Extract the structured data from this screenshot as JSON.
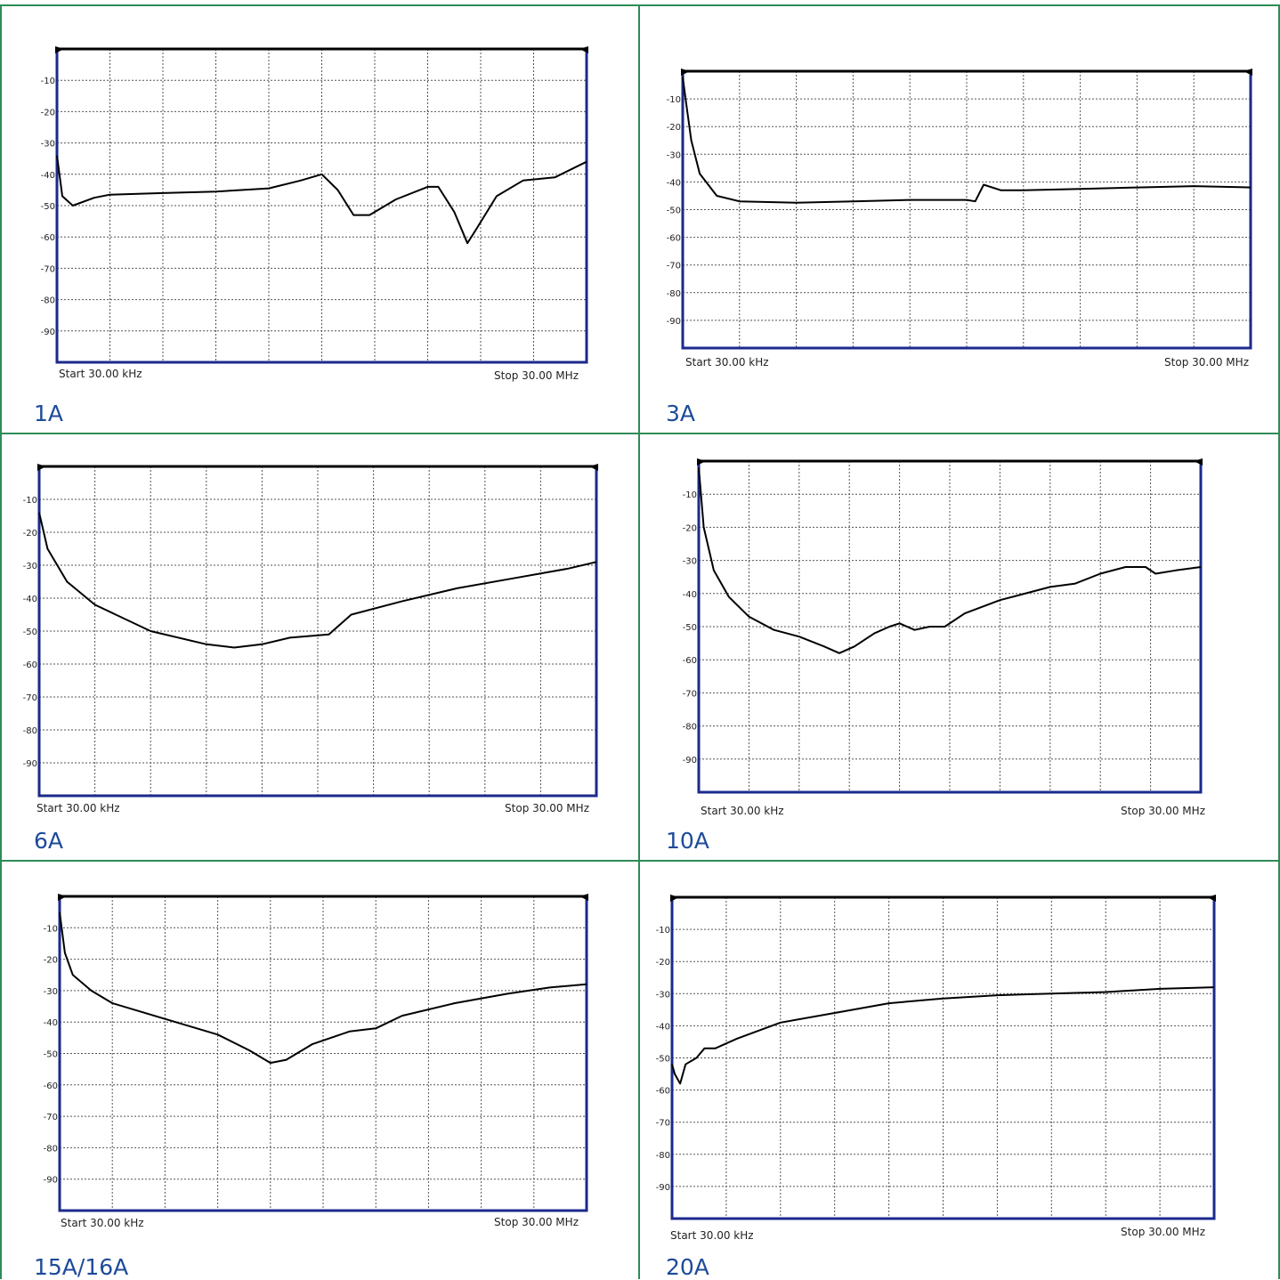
{
  "page": {
    "colors": {
      "cell_border": "#2e8b57",
      "caption": "#1e4b9a",
      "frame": "#1b2a8c",
      "grid": "#555555",
      "trace": "#000000"
    }
  },
  "chart_data": [
    {
      "type": "line",
      "caption": "1A",
      "start_label": "Start 30.00 kHz",
      "stop_label": "Stop 30.00 MHz",
      "yticks": [
        "-10",
        "-20",
        "-30",
        "-40",
        "-50",
        "-60",
        "-70",
        "-80",
        "-90"
      ],
      "ylim": [
        -100,
        0
      ],
      "x_divisions": 10,
      "series": [
        {
          "values": [
            [
              0,
              -34
            ],
            [
              0.1,
              -47
            ],
            [
              0.3,
              -50
            ],
            [
              0.7,
              -47.5
            ],
            [
              1,
              -46.5
            ],
            [
              2,
              -46
            ],
            [
              3,
              -45.5
            ],
            [
              4,
              -44.5
            ],
            [
              4.6,
              -42
            ],
            [
              5,
              -40
            ],
            [
              5.3,
              -45
            ],
            [
              5.6,
              -53
            ],
            [
              5.9,
              -53
            ],
            [
              6.4,
              -48
            ],
            [
              7,
              -44
            ],
            [
              7.2,
              -44
            ],
            [
              7.5,
              -52
            ],
            [
              7.75,
              -62
            ],
            [
              7.9,
              -58
            ],
            [
              8.3,
              -47
            ],
            [
              8.8,
              -42
            ],
            [
              9.4,
              -41
            ],
            [
              10,
              -36
            ]
          ]
        }
      ]
    },
    {
      "type": "line",
      "caption": "3A",
      "start_label": "Start 30.00 kHz",
      "stop_label": "Stop 30.00 MHz",
      "yticks": [
        "-10",
        "-20",
        "-30",
        "-40",
        "-50",
        "-60",
        "-70",
        "-80",
        "-90"
      ],
      "ylim": [
        -100,
        0
      ],
      "x_divisions": 10,
      "series": [
        {
          "values": [
            [
              0,
              -2
            ],
            [
              0.05,
              -10
            ],
            [
              0.15,
              -25
            ],
            [
              0.3,
              -37
            ],
            [
              0.6,
              -45
            ],
            [
              1,
              -47
            ],
            [
              2,
              -47.5
            ],
            [
              3,
              -47
            ],
            [
              4,
              -46.5
            ],
            [
              5,
              -46.5
            ],
            [
              5.15,
              -47
            ],
            [
              5.3,
              -41
            ],
            [
              5.6,
              -43
            ],
            [
              6,
              -43
            ],
            [
              7,
              -42.5
            ],
            [
              8,
              -42
            ],
            [
              9,
              -41.5
            ],
            [
              10,
              -42
            ]
          ]
        }
      ]
    },
    {
      "type": "line",
      "caption": "6A",
      "start_label": "Start 30.00 kHz",
      "stop_label": "Stop 30.00 MHz",
      "yticks": [
        "-10",
        "-20",
        "-30",
        "-40",
        "-50",
        "-60",
        "-70",
        "-80",
        "-90"
      ],
      "ylim": [
        -100,
        0
      ],
      "x_divisions": 10,
      "series": [
        {
          "values": [
            [
              0,
              -14
            ],
            [
              0.15,
              -25
            ],
            [
              0.5,
              -35
            ],
            [
              1,
              -42
            ],
            [
              2,
              -50
            ],
            [
              3,
              -54
            ],
            [
              3.5,
              -55
            ],
            [
              4,
              -54
            ],
            [
              4.5,
              -52
            ],
            [
              5.2,
              -51
            ],
            [
              5.6,
              -45
            ],
            [
              6.5,
              -41
            ],
            [
              7.5,
              -37
            ],
            [
              8.5,
              -34
            ],
            [
              9.5,
              -31
            ],
            [
              10,
              -29
            ]
          ]
        }
      ]
    },
    {
      "type": "line",
      "caption": "10A",
      "start_label": "Start 30.00 kHz",
      "stop_label": "Stop 30.00 MHz",
      "yticks": [
        "-10",
        "-20",
        "-30",
        "-40",
        "-50",
        "-60",
        "-70",
        "-80",
        "-90"
      ],
      "ylim": [
        -100,
        0
      ],
      "x_divisions": 10,
      "series": [
        {
          "values": [
            [
              0,
              -2
            ],
            [
              0.1,
              -20
            ],
            [
              0.3,
              -33
            ],
            [
              0.6,
              -41
            ],
            [
              1,
              -47
            ],
            [
              1.5,
              -51
            ],
            [
              2,
              -53
            ],
            [
              2.5,
              -56
            ],
            [
              2.8,
              -58
            ],
            [
              3.1,
              -56
            ],
            [
              3.5,
              -52
            ],
            [
              3.8,
              -50
            ],
            [
              4,
              -49
            ],
            [
              4.3,
              -51
            ],
            [
              4.6,
              -50
            ],
            [
              4.9,
              -50
            ],
            [
              5.3,
              -46
            ],
            [
              6,
              -42
            ],
            [
              7,
              -38
            ],
            [
              7.5,
              -37
            ],
            [
              8,
              -34
            ],
            [
              8.5,
              -32
            ],
            [
              8.9,
              -32
            ],
            [
              9.1,
              -34
            ],
            [
              9.5,
              -33
            ],
            [
              10,
              -32
            ]
          ]
        }
      ]
    },
    {
      "type": "line",
      "caption": "15A/16A",
      "start_label": "Start 30.00 kHz",
      "stop_label": "Stop 30.00 MHz",
      "yticks": [
        "-10",
        "-20",
        "-30",
        "-40",
        "-50",
        "-60",
        "-70",
        "-80",
        "-90"
      ],
      "ylim": [
        -100,
        0
      ],
      "x_divisions": 10,
      "series": [
        {
          "values": [
            [
              0,
              -5
            ],
            [
              0.1,
              -18
            ],
            [
              0.25,
              -25
            ],
            [
              0.6,
              -30
            ],
            [
              1,
              -34
            ],
            [
              2,
              -39
            ],
            [
              3,
              -44
            ],
            [
              3.6,
              -49
            ],
            [
              4,
              -53
            ],
            [
              4.3,
              -52
            ],
            [
              4.8,
              -47
            ],
            [
              5.5,
              -43
            ],
            [
              6,
              -42
            ],
            [
              6.5,
              -38
            ],
            [
              7.5,
              -34
            ],
            [
              8.5,
              -31
            ],
            [
              9.3,
              -29
            ],
            [
              10,
              -28
            ]
          ]
        }
      ]
    },
    {
      "type": "line",
      "caption": "20A",
      "start_label": "Start 30.00 kHz",
      "stop_label": "Stop 30.00 MHz",
      "yticks": [
        "-10",
        "-20",
        "-30",
        "-40",
        "-50",
        "-60",
        "-70",
        "-80",
        "-90"
      ],
      "ylim": [
        -100,
        0
      ],
      "x_divisions": 10,
      "series": [
        {
          "values": [
            [
              0,
              -52
            ],
            [
              0.05,
              -55
            ],
            [
              0.15,
              -58
            ],
            [
              0.25,
              -52
            ],
            [
              0.45,
              -50
            ],
            [
              0.6,
              -47
            ],
            [
              0.8,
              -47
            ],
            [
              1.2,
              -44
            ],
            [
              2,
              -39
            ],
            [
              3,
              -36
            ],
            [
              4,
              -33
            ],
            [
              5,
              -31.5
            ],
            [
              6,
              -30.5
            ],
            [
              7,
              -30
            ],
            [
              8,
              -29.5
            ],
            [
              9,
              -28.5
            ],
            [
              10,
              -28
            ]
          ]
        }
      ]
    }
  ]
}
